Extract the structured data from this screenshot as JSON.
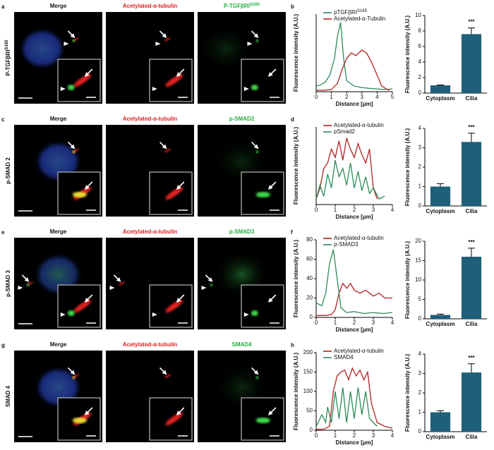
{
  "rows": [
    {
      "letter": "a",
      "label": "P-TGFβRI",
      "label_sup": "S165",
      "titles": [
        "Merge",
        "Acetylated-α-tubulin",
        "P-TGFβRI"
      ],
      "title_sup": "S165",
      "chart_letter": "b",
      "profile": {
        "xlabel": "Distance [μm]",
        "ylabel": "Fluorescence intensity (A.U.)",
        "xlim": [
          0,
          5
        ],
        "xticks": [
          0,
          1,
          2,
          3,
          4,
          5
        ],
        "ylim": [
          0,
          280
        ],
        "yticks": [],
        "series": [
          {
            "name": "pTGFβRI",
            "name_sup": "S165",
            "color": "#2e8b57",
            "x": [
              0,
              0.3,
              0.6,
              0.9,
              1.2,
              1.4,
              1.6,
              1.8,
              2.0,
              2.5,
              3,
              3.5,
              4,
              4.5,
              5
            ],
            "values": [
              20,
              25,
              35,
              60,
              120,
              200,
              250,
              120,
              40,
              20,
              15,
              12,
              10,
              8,
              10
            ]
          },
          {
            "name": "Acetylated-α-Tubulin",
            "color": "#b22222",
            "x": [
              0,
              0.5,
              1,
              1.4,
              1.7,
              2.0,
              2.3,
              2.6,
              3.0,
              3.3,
              3.6,
              4.0,
              4.3,
              4.6,
              4.8
            ],
            "values": [
              5,
              5,
              8,
              30,
              80,
              120,
              140,
              130,
              150,
              140,
              110,
              60,
              20,
              10,
              5
            ]
          }
        ]
      },
      "bars": {
        "ylabel": "Fluorescence intensity (A.U.)",
        "categories": [
          "Cytoplasm",
          "Cilia"
        ],
        "values": [
          1,
          7.6
        ],
        "errors": [
          0.05,
          0.8
        ],
        "ylim": [
          0,
          10
        ],
        "yticks": [
          0,
          2,
          4,
          6,
          8,
          10
        ],
        "annotation": "***",
        "color": "#1f5f7a"
      }
    },
    {
      "letter": "c",
      "label": "p-SMAD 2",
      "titles": [
        "Merge",
        "Acetylated-α-tubulin",
        "p-SMAD2"
      ],
      "chart_letter": "d",
      "profile": {
        "xlabel": "Distance [μm]",
        "ylabel": "Fluorescence intensity (A.U.)",
        "xlim": [
          0,
          4
        ],
        "xticks": [
          0,
          1,
          2,
          3,
          4
        ],
        "ylim": [
          0,
          280
        ],
        "yticks": [],
        "series": [
          {
            "name": "Acetylated-α-tubulin",
            "color": "#b22222",
            "x": [
              0,
              0.2,
              0.4,
              0.6,
              0.8,
              1.0,
              1.2,
              1.4,
              1.6,
              1.8,
              2.0,
              2.2,
              2.4,
              2.6,
              2.8,
              3.0,
              3.2
            ],
            "values": [
              20,
              60,
              130,
              150,
              200,
              170,
              230,
              160,
              240,
              200,
              170,
              220,
              180,
              150,
              200,
              60,
              20
            ]
          },
          {
            "name": "pSmad2",
            "color": "#2e8b57",
            "x": [
              0,
              0.2,
              0.4,
              0.6,
              0.8,
              1.0,
              1.2,
              1.4,
              1.6,
              1.8,
              2.0,
              2.2,
              2.4,
              2.6,
              2.8,
              3.0,
              3.3,
              3.6
            ],
            "values": [
              20,
              70,
              30,
              110,
              60,
              160,
              100,
              130,
              70,
              150,
              60,
              120,
              50,
              100,
              40,
              60,
              20,
              30
            ]
          }
        ]
      },
      "bars": {
        "ylabel": "Fluorescence intensity (A.U.)",
        "categories": [
          "Cytoplasm",
          "Cilia"
        ],
        "values": [
          1,
          3.3
        ],
        "errors": [
          0.15,
          0.45
        ],
        "ylim": [
          0,
          4
        ],
        "yticks": [
          0,
          1,
          2,
          3,
          4
        ],
        "annotation": "***",
        "color": "#1f5f7a"
      }
    },
    {
      "letter": "e",
      "label": "p-SMAD 3",
      "titles": [
        "Merge",
        "Acetylated-α-tubulin",
        "p-SMAD3"
      ],
      "chart_letter": "f",
      "profile": {
        "xlabel": "Distance [μm]",
        "ylabel": "Fluorescence intensity (A.U.)",
        "xlim": [
          0,
          4
        ],
        "xticks": [
          0,
          1,
          2,
          3,
          4
        ],
        "ylim": [
          0,
          80
        ],
        "yticks": [
          0,
          20,
          40,
          60,
          80
        ],
        "series": [
          {
            "name": "Acetylated-α-tubulin",
            "color": "#b22222",
            "x": [
              0,
              0.5,
              0.8,
              1.0,
              1.2,
              1.4,
              1.6,
              1.8,
              2.0,
              2.3,
              2.6,
              3.0,
              3.3,
              3.6,
              4.0
            ],
            "values": [
              2,
              2,
              3,
              8,
              25,
              35,
              30,
              35,
              28,
              25,
              28,
              22,
              25,
              20,
              20
            ]
          },
          {
            "name": "p-SMAD3",
            "color": "#2e8b57",
            "x": [
              0,
              0.3,
              0.5,
              0.7,
              0.9,
              1.1,
              1.3,
              1.6,
              2,
              2.5,
              3,
              3.5,
              4
            ],
            "values": [
              15,
              12,
              25,
              55,
              70,
              40,
              10,
              5,
              6,
              4,
              5,
              4,
              5
            ]
          }
        ]
      },
      "bars": {
        "ylabel": "Fluorescence intensity (A.U.)",
        "categories": [
          "Cytoplasm",
          "Cilia"
        ],
        "values": [
          1,
          16
        ],
        "errors": [
          0.2,
          2.2
        ],
        "ylim": [
          0,
          20
        ],
        "yticks": [
          0,
          5,
          10,
          15,
          20
        ],
        "annotation": "***",
        "color": "#1f5f7a"
      }
    },
    {
      "letter": "g",
      "label": "SMAD 4",
      "titles": [
        "Merge",
        "Acetylated-α-tubulin",
        "SMAD4"
      ],
      "chart_letter": "h",
      "profile": {
        "xlabel": "Distance [μm]",
        "ylabel": "Fluorescence intensity (A.U.)",
        "xlim": [
          0,
          4
        ],
        "xticks": [
          0,
          1,
          2,
          3,
          4
        ],
        "ylim": [
          0,
          200
        ],
        "yticks": [
          0,
          50,
          100,
          150,
          200
        ],
        "series": [
          {
            "name": "Acetylated-α-tubulin",
            "color": "#b22222",
            "x": [
              0,
              0.4,
              0.7,
              0.9,
              1.1,
              1.3,
              1.5,
              1.7,
              1.9,
              2.1,
              2.3,
              2.5,
              2.7,
              2.9,
              3.2,
              3.6,
              4
            ],
            "values": [
              2,
              3,
              10,
              100,
              140,
              150,
              155,
              130,
              160,
              140,
              155,
              130,
              150,
              70,
              20,
              10,
              5
            ]
          },
          {
            "name": "SMAD4",
            "color": "#2e8b57",
            "x": [
              0,
              0.3,
              0.5,
              0.6,
              0.8,
              1.0,
              1.2,
              1.4,
              1.6,
              1.8,
              2.0,
              2.2,
              2.4,
              2.6,
              2.8,
              3.0,
              3.2
            ],
            "values": [
              10,
              40,
              20,
              60,
              20,
              100,
              30,
              110,
              20,
              100,
              30,
              110,
              40,
              100,
              30,
              20,
              10
            ]
          }
        ]
      },
      "bars": {
        "ylabel": "Fluorescence intensity (A.U.)",
        "categories": [
          "Cytoplasm",
          "Cilia"
        ],
        "values": [
          1,
          3.05
        ],
        "errors": [
          0.08,
          0.45
        ],
        "ylim": [
          0,
          4
        ],
        "yticks": [
          0,
          1,
          2,
          3,
          4
        ],
        "annotation": "***",
        "color": "#1f5f7a"
      }
    }
  ]
}
